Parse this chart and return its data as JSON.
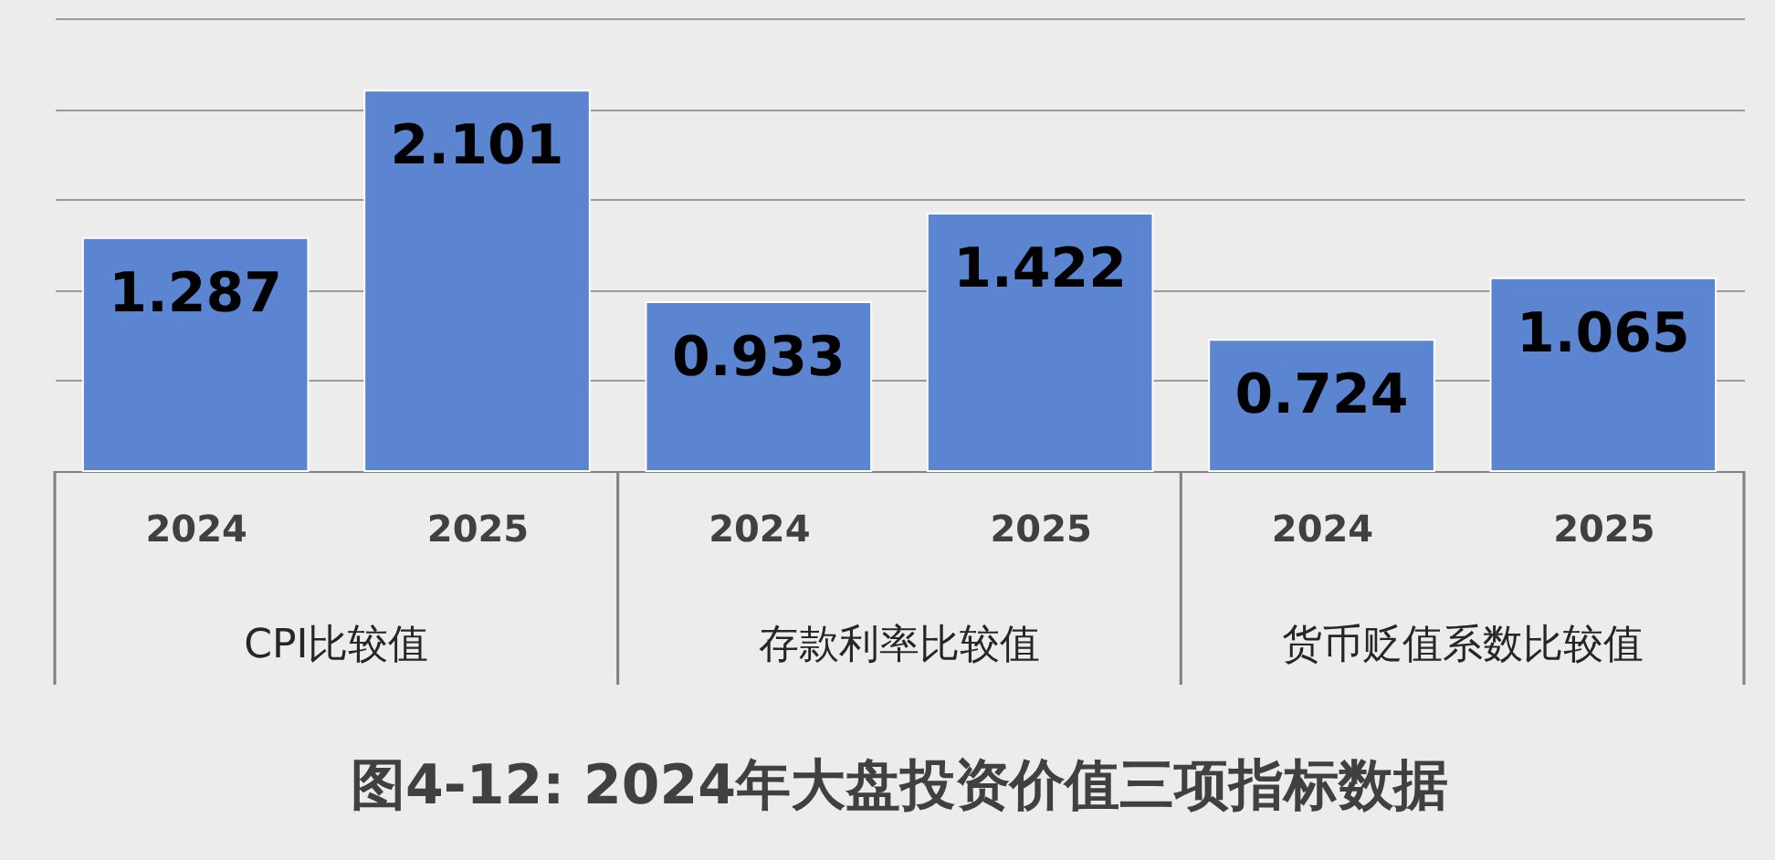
{
  "chart_data": {
    "type": "bar",
    "title": "图4-12: 2024年大盘投资价值三项指标数据",
    "categories": [
      "2024",
      "2025",
      "2024",
      "2025",
      "2024",
      "2025"
    ],
    "values": [
      1.287,
      2.101,
      0.933,
      1.422,
      0.724,
      1.065
    ],
    "color": "#5b84d1",
    "annotations": [
      "CPI比较值",
      "存款利率比较值",
      "货币贬值系数比较值"
    ],
    "ylim": [
      0,
      2.5
    ],
    "yticks": [
      {
        "value": 0.5,
        "label": null
      },
      {
        "value": 1,
        "label": null
      },
      {
        "value": 1.5,
        "label": null
      },
      {
        "value": 2,
        "label": null
      },
      {
        "value": 2.5,
        "label": null
      }
    ],
    "grid": "y",
    "tick_labels": "x",
    "data_labels": true
  }
}
